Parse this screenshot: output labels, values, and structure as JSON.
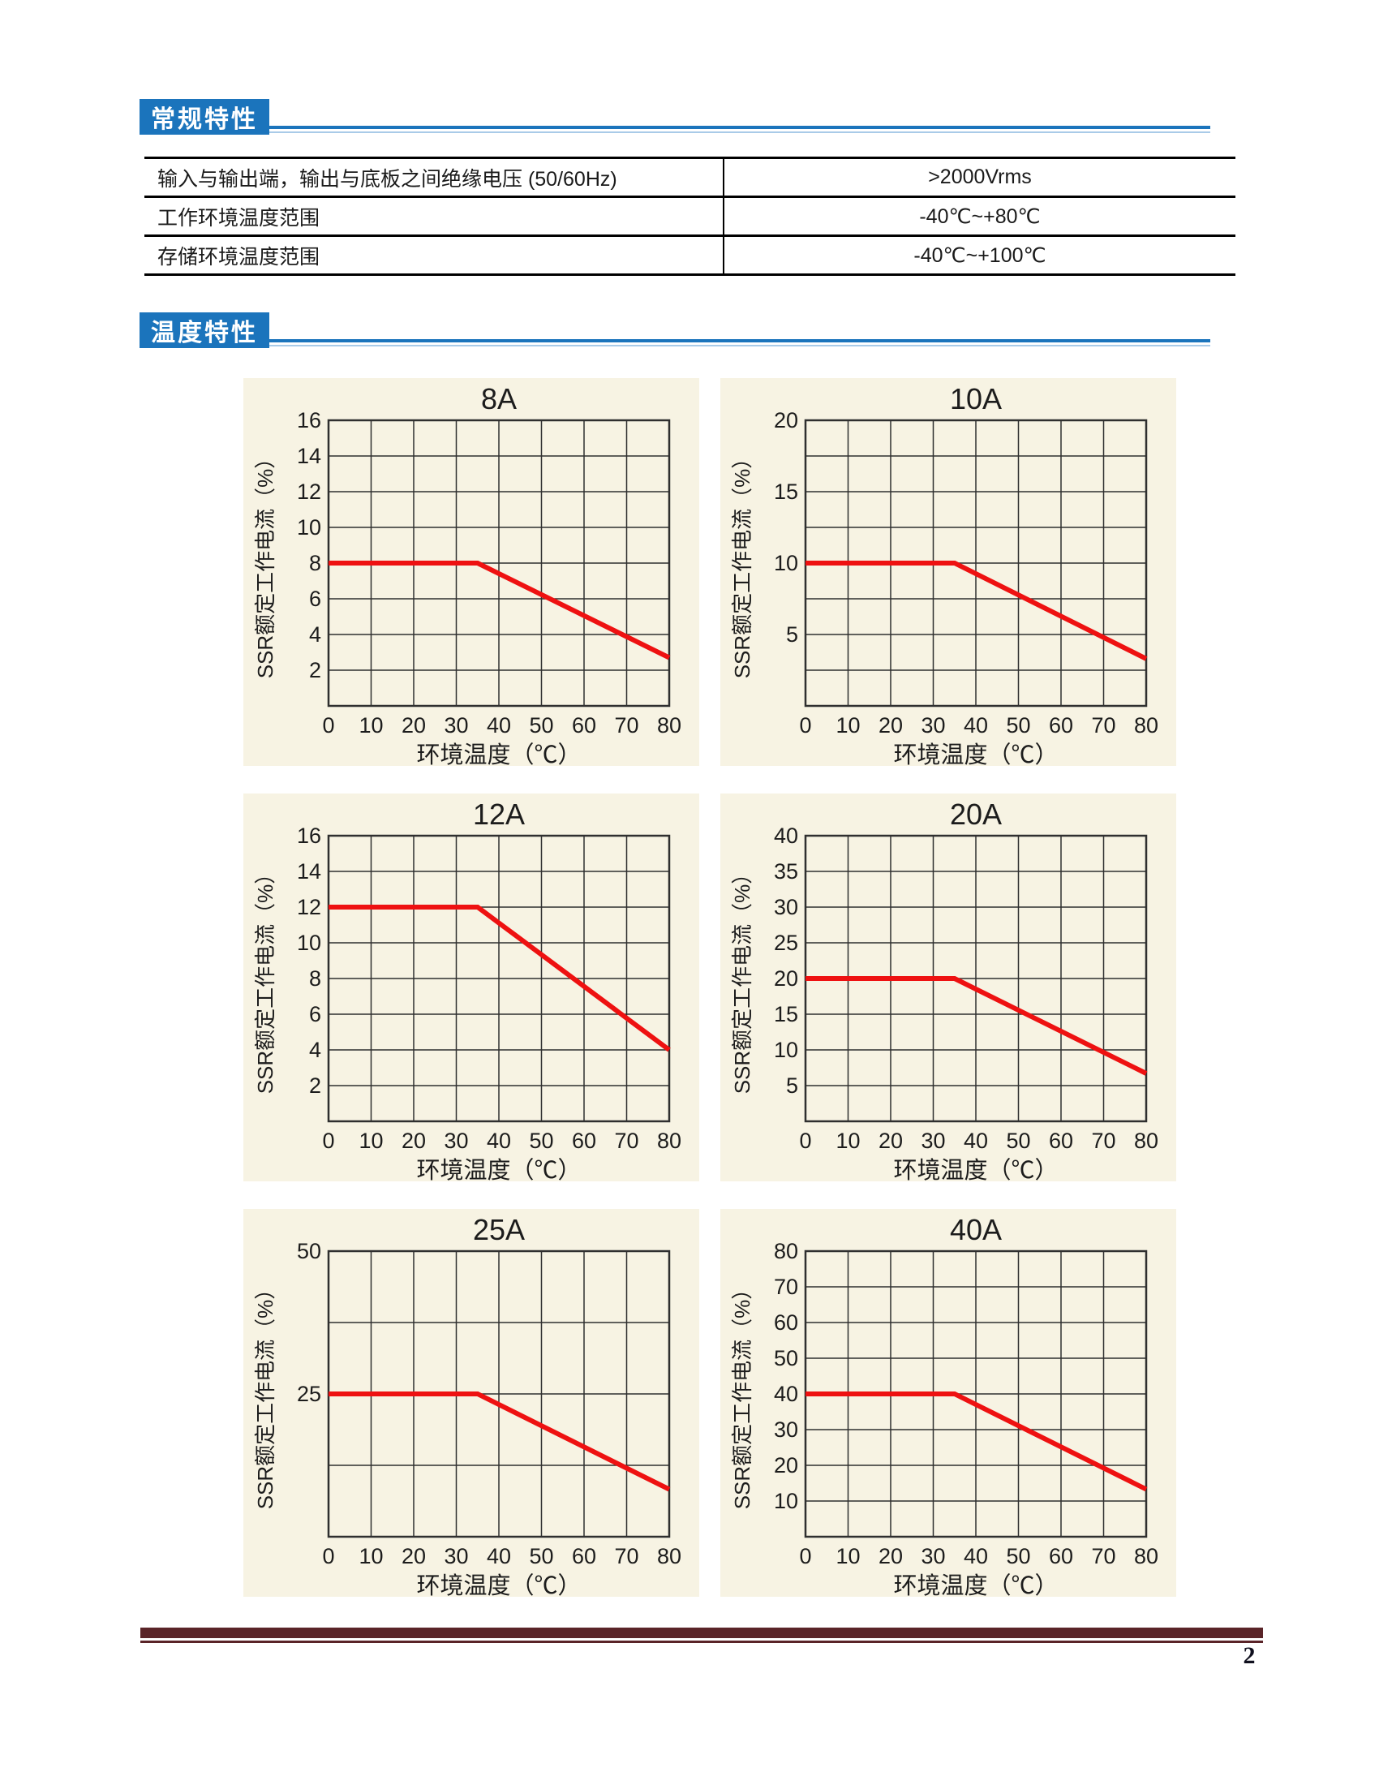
{
  "page": {
    "number": "2"
  },
  "colors": {
    "accent_blue": "#1b74bc",
    "accent_blue_light": "#a9cbe8",
    "panel_bg": "#f7f3e3",
    "line_red": "#ee1111",
    "grid_black": "#2f2f2f",
    "footer_maroon": "#5a2428",
    "text_dark": "#1c1c1c"
  },
  "sections": [
    {
      "title": "常规特性"
    },
    {
      "title": "温度特性"
    }
  ],
  "general_table": {
    "rows": [
      {
        "param": "输入与输出端，输出与底板之间绝缘电压 (50/60Hz)",
        "value": ">2000Vrms"
      },
      {
        "param": "工作环境温度范围",
        "value": "-40℃~+80℃"
      },
      {
        "param": "存储环境温度范围",
        "value": "-40℃~+100℃"
      }
    ]
  },
  "charts_shared": {
    "xlabel": "环境温度（℃）",
    "ylabel": "SSR额定工作电流（%）",
    "xlim": [
      0,
      80
    ],
    "xticks": [
      0,
      10,
      20,
      30,
      40,
      50,
      60,
      70,
      80
    ],
    "grid": "on",
    "curve_color": "#ee1111"
  },
  "chart_data": [
    {
      "type": "line",
      "title": "8A",
      "xlabel": "环境温度（℃）",
      "ylabel": "SSR额定工作电流（%）",
      "ylim": [
        0,
        16
      ],
      "grid_step": 2,
      "yticks": [
        16,
        14,
        12,
        10,
        8,
        6,
        4,
        2
      ],
      "line": [
        [
          0,
          8
        ],
        [
          35,
          8
        ],
        [
          80,
          2.7
        ]
      ]
    },
    {
      "type": "line",
      "title": "10A",
      "xlabel": "环境温度（℃）",
      "ylabel": "SSR额定工作电流（%）",
      "ylim": [
        0,
        20
      ],
      "grid_step": 2.5,
      "yticks": [
        20,
        15,
        10,
        5
      ],
      "line": [
        [
          0,
          10
        ],
        [
          35,
          10
        ],
        [
          80,
          3.3
        ]
      ]
    },
    {
      "type": "line",
      "title": "12A",
      "xlabel": "环境温度（℃）",
      "ylabel": "SSR额定工作电流（%）",
      "ylim": [
        0,
        16
      ],
      "grid_step": 2,
      "yticks": [
        16,
        14,
        12,
        10,
        8,
        6,
        4,
        2
      ],
      "line": [
        [
          0,
          12
        ],
        [
          35,
          12
        ],
        [
          80,
          4
        ]
      ]
    },
    {
      "type": "line",
      "title": "20A",
      "xlabel": "环境温度（℃）",
      "ylabel": "SSR额定工作电流（%）",
      "ylim": [
        0,
        40
      ],
      "grid_step": 5,
      "yticks": [
        40,
        35,
        30,
        25,
        20,
        15,
        10,
        5
      ],
      "line": [
        [
          0,
          20
        ],
        [
          35,
          20
        ],
        [
          80,
          6.7
        ]
      ]
    },
    {
      "type": "line",
      "title": "25A",
      "xlabel": "环境温度（℃）",
      "ylabel": "SSR额定工作电流（%）",
      "ylim": [
        0,
        50
      ],
      "grid_step": 12.5,
      "yticks": [
        50,
        25
      ],
      "line": [
        [
          0,
          25
        ],
        [
          35,
          25
        ],
        [
          80,
          8.3
        ]
      ]
    },
    {
      "type": "line",
      "title": "40A",
      "xlabel": "环境温度（℃）",
      "ylabel": "SSR额定工作电流（%）",
      "ylim": [
        0,
        80
      ],
      "grid_step": 10,
      "yticks": [
        80,
        70,
        60,
        50,
        40,
        30,
        20,
        10
      ],
      "line": [
        [
          0,
          40
        ],
        [
          35,
          40
        ],
        [
          80,
          13.3
        ]
      ]
    }
  ]
}
